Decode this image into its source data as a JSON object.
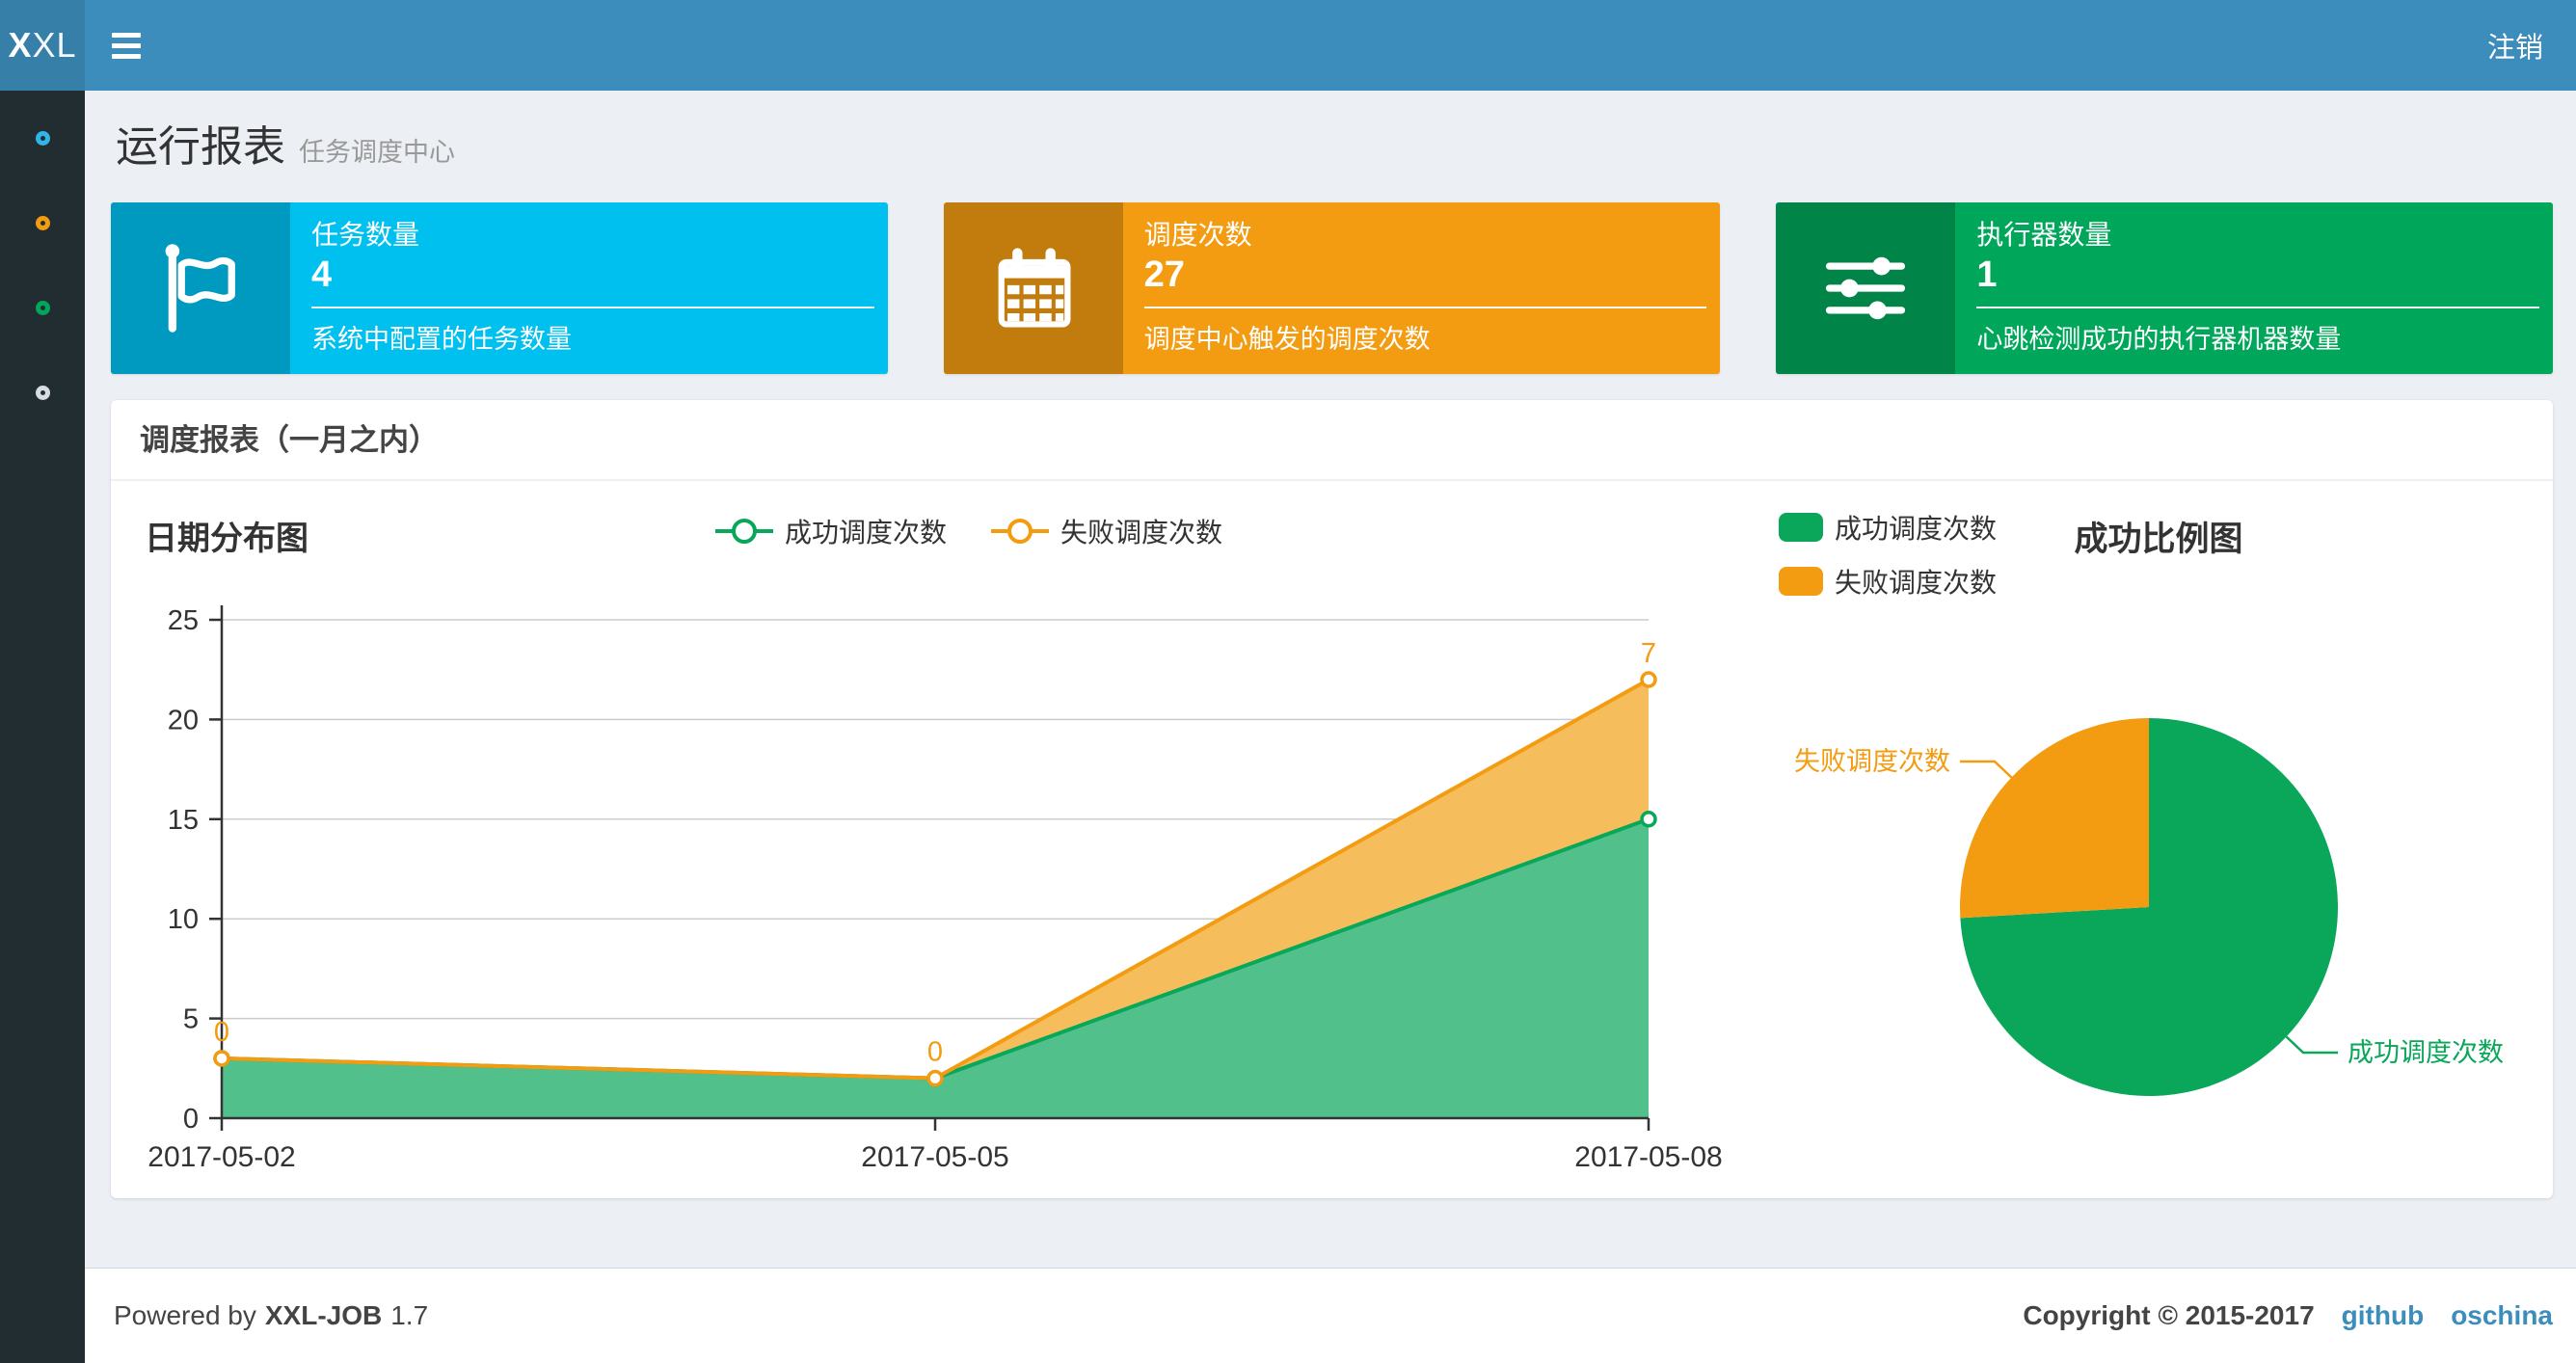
{
  "navbar": {
    "logo_bold": "X",
    "logo_rest": "XL",
    "logout": "注销"
  },
  "sidebar": {
    "items": [
      {
        "name": "menu-item-1",
        "icon": "circle-icon",
        "color": "#31b5e6"
      },
      {
        "name": "menu-item-2",
        "icon": "circle-icon",
        "color": "#f39c12"
      },
      {
        "name": "menu-item-3",
        "icon": "circle-icon",
        "color": "#00a65a"
      },
      {
        "name": "menu-item-4",
        "icon": "circle-icon",
        "color": "#d8dde1"
      }
    ]
  },
  "page_header": {
    "title": "运行报表",
    "subtitle": "任务调度中心"
  },
  "stats": [
    {
      "label": "任务数量",
      "value": "4",
      "desc": "系统中配置的任务数量",
      "color": "#00c0ef",
      "icon": "flag-icon"
    },
    {
      "label": "调度次数",
      "value": "27",
      "desc": "调度中心触发的调度次数",
      "color": "#f39c12",
      "icon": "calendar-icon"
    },
    {
      "label": "执行器数量",
      "value": "1",
      "desc": "心跳检测成功的执行器机器数量",
      "color": "#00a65a",
      "icon": "sliders-icon"
    }
  ],
  "panel": {
    "title": "调度报表（一月之内）"
  },
  "chart_data": [
    {
      "type": "area",
      "title": "日期分布图",
      "x": [
        "2017-05-02",
        "2017-05-05",
        "2017-05-08"
      ],
      "series": [
        {
          "name": "成功调度次数",
          "values": [
            3,
            2,
            15
          ],
          "color": "#09a75a",
          "fill": "#52c08a"
        },
        {
          "name": "失败调度次数",
          "values": [
            0,
            0,
            7
          ],
          "color": "#f39c12",
          "fill": "#f6bd5c",
          "labels": [
            "0",
            "0",
            "7"
          ]
        }
      ],
      "stacked": true,
      "ylim": [
        0,
        25
      ],
      "yticks": [
        0,
        5,
        10,
        15,
        20,
        25
      ],
      "grid": true,
      "legend_position": "top-center"
    },
    {
      "type": "pie",
      "title": "成功比例图",
      "slices": [
        {
          "name": "成功调度次数",
          "value": 20,
          "color": "#0aa65a"
        },
        {
          "name": "失败调度次数",
          "value": 7,
          "color": "#f39c12"
        }
      ],
      "legend_position": "top-left"
    }
  ],
  "footer": {
    "powered_prefix": "Powered by",
    "product": "XXL-JOB",
    "version": "1.7",
    "copyright": "Copyright © 2015-2017",
    "links": [
      "github",
      "oschina"
    ]
  }
}
